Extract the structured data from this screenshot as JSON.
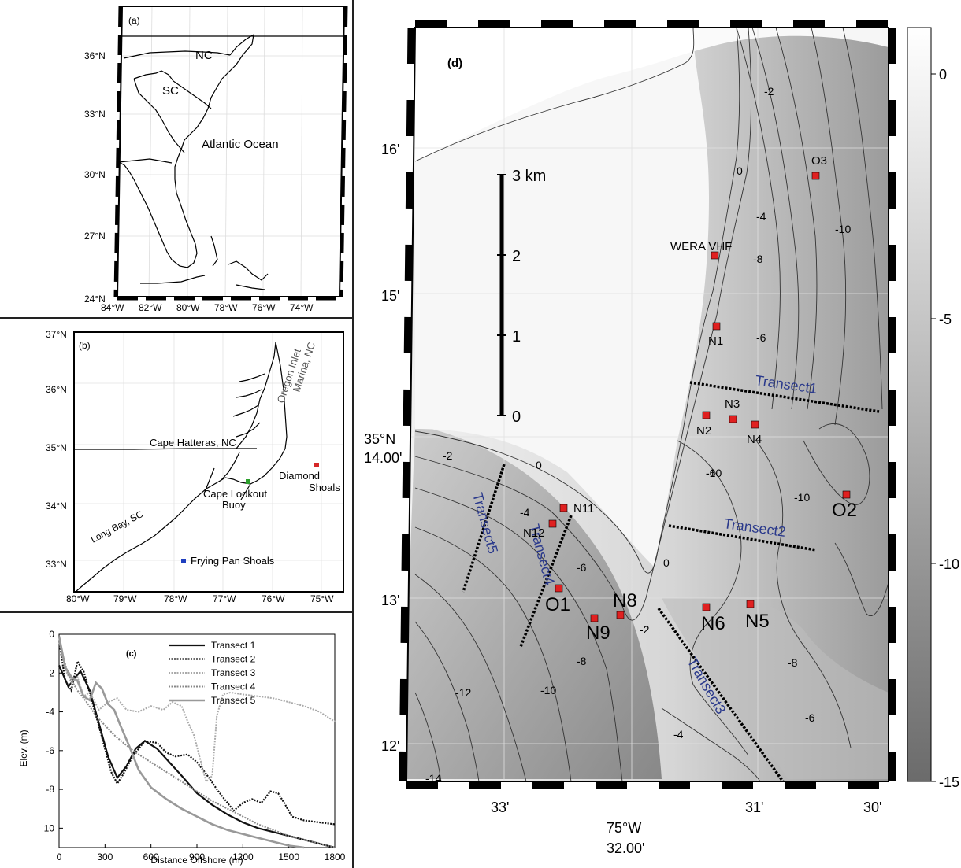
{
  "panel_a": {
    "label": "(a)",
    "lat_labels": [
      "36°N",
      "33°N",
      "30°N",
      "27°N",
      "24°N"
    ],
    "lon_labels": [
      "84°W",
      "82°W",
      "80°W",
      "78°W",
      "76°W",
      "74°W"
    ],
    "place_labels": [
      "NC",
      "SC",
      "Atlantic Ocean"
    ]
  },
  "panel_b": {
    "label": "(b)",
    "lat_labels": [
      "37°N",
      "36°N",
      "35°N",
      "34°N",
      "33°N"
    ],
    "lon_labels": [
      "80°W",
      "79°W",
      "78°W",
      "77°W",
      "76°W",
      "75°W"
    ],
    "place_labels": [
      "Oregon Inlet",
      "Marina, NC",
      "Cape Hatteras, NC",
      "Diamond",
      "Shoals",
      "Cape Lookout",
      "Buoy",
      "Long Bay, SC",
      "Frying Pan Shoals"
    ],
    "marker_colors": {
      "diamond_shoals": "#d62728",
      "cape_lookout": "#2ca02c",
      "frying_pan": "#1f3fbf"
    }
  },
  "panel_c": {
    "label": "(c)",
    "xlabel": "Distance Offshore (m)",
    "ylabel": "Elev. (m)",
    "xticks": [
      "0",
      "300",
      "600",
      "900",
      "1200",
      "1500",
      "1800"
    ],
    "yticks": [
      "0",
      "-2",
      "-4",
      "-6",
      "-8",
      "-10"
    ]
  },
  "panel_d": {
    "label": "(d)",
    "lat_labels": [
      "16'",
      "15'",
      "35°N",
      "14.00'",
      "13'",
      "12'"
    ],
    "lon_labels": [
      "33'",
      "75°W",
      "32.00'",
      "31'",
      "30'"
    ],
    "scale_labels": [
      "3 km",
      "2",
      "1",
      "0"
    ],
    "colorbar_labels": [
      "0",
      "-5",
      "-10",
      "-15"
    ],
    "contour_labels": [
      "-2",
      "0",
      "-4",
      "-8",
      "-10",
      "-6",
      "-10",
      "-2",
      "0",
      "-4",
      "-6",
      "-10",
      "-6",
      "-2",
      "0",
      "-8",
      "-10",
      "-12",
      "-8",
      "-6",
      "-4",
      "-14"
    ],
    "transect_labels": [
      "Transect1",
      "Transect2",
      "Transect3",
      "Transect4",
      "Transect5"
    ],
    "stations": [
      "O3",
      "WERA VHF",
      "N1",
      "N3",
      "N2",
      "N4",
      "O2",
      "N11",
      "N12",
      "O1",
      "N8",
      "N9",
      "N6",
      "N5"
    ],
    "station_color": "#e02020",
    "transect_color": "#2b3a8c"
  },
  "chart_data": {
    "type": "line",
    "title": "",
    "xlabel": "Distance Offshore (m)",
    "ylabel": "Elev. (m)",
    "xlim": [
      0,
      1800
    ],
    "ylim": [
      -11,
      0
    ],
    "legend_position": "top-right",
    "grid": false,
    "series": [
      {
        "name": "Transect 1",
        "style": "solid-black",
        "x": [
          0,
          60,
          100,
          140,
          200,
          260,
          320,
          380,
          440,
          500,
          560,
          640,
          720,
          800,
          900,
          1000,
          1100,
          1200,
          1300,
          1400,
          1500,
          1600,
          1700,
          1800
        ],
        "y": [
          -1.6,
          -2.7,
          -2.3,
          -1.9,
          -2.9,
          -4.6,
          -6.3,
          -7.4,
          -6.8,
          -5.9,
          -5.5,
          -5.9,
          -6.6,
          -7.3,
          -8.2,
          -8.8,
          -9.3,
          -9.7,
          -10.0,
          -10.2,
          -10.4,
          -10.6,
          -10.8,
          -11.0
        ]
      },
      {
        "name": "Transect 2",
        "style": "dotted-black",
        "x": [
          0,
          40,
          80,
          120,
          160,
          220,
          280,
          340,
          380,
          420,
          480,
          560,
          640,
          700,
          760,
          840,
          900,
          960,
          1040,
          1100,
          1140,
          1200,
          1260,
          1320,
          1380,
          1430,
          1470,
          1520,
          1600,
          1700,
          1800
        ],
        "y": [
          -0.3,
          -2.4,
          -2.9,
          -1.4,
          -1.9,
          -3.6,
          -5.3,
          -7.1,
          -7.7,
          -7.2,
          -6.3,
          -5.5,
          -5.6,
          -6.1,
          -6.3,
          -6.2,
          -6.6,
          -7.2,
          -8.1,
          -8.7,
          -9.1,
          -8.7,
          -8.5,
          -8.7,
          -8.1,
          -8.2,
          -8.7,
          -9.4,
          -9.6,
          -9.7,
          -9.8
        ]
      },
      {
        "name": "Transect 3",
        "style": "dotted-lightgray",
        "x": [
          0,
          40,
          80,
          120,
          160,
          200,
          260,
          320,
          380,
          440,
          520,
          600,
          680,
          740,
          800,
          840,
          880,
          920,
          960,
          1000,
          1030,
          1070,
          1120,
          1200,
          1300,
          1400,
          1500,
          1600,
          1700,
          1800
        ],
        "y": [
          -0.3,
          -1.8,
          -2.5,
          -2.2,
          -3.2,
          -3.0,
          -3.9,
          -3.5,
          -3.3,
          -3.9,
          -4.0,
          -3.7,
          -3.9,
          -3.5,
          -3.7,
          -4.5,
          -5.2,
          -6.4,
          -7.6,
          -7.3,
          -4.2,
          -3.1,
          -3.0,
          -3.1,
          -3.2,
          -3.3,
          -3.5,
          -3.7,
          -4.0,
          -4.5
        ]
      },
      {
        "name": "Transect 4",
        "style": "dotted-gray",
        "x": [
          0,
          60,
          120,
          180,
          240,
          300,
          360,
          420,
          500,
          600,
          700,
          800,
          900,
          1000,
          1100,
          1200,
          1300,
          1400,
          1500,
          1600,
          1700,
          1800
        ],
        "y": [
          -0.4,
          -2.1,
          -2.9,
          -3.5,
          -4.2,
          -4.7,
          -5.2,
          -5.6,
          -6.1,
          -6.6,
          -7.1,
          -7.6,
          -8.1,
          -8.6,
          -9.0,
          -9.4,
          -9.8,
          -10.1,
          -10.4,
          -10.6,
          -10.8,
          -11.0
        ]
      },
      {
        "name": "Transect 5",
        "style": "solid-gray",
        "x": [
          0,
          40,
          80,
          120,
          160,
          200,
          240,
          280,
          320,
          360,
          400,
          460,
          520,
          600,
          700,
          800,
          900,
          1000,
          1100,
          1200,
          1300,
          1400,
          1500,
          1600
        ],
        "y": [
          -0.1,
          -1.7,
          -2.2,
          -2.4,
          -3.2,
          -3.4,
          -2.5,
          -2.8,
          -3.6,
          -3.9,
          -4.7,
          -5.8,
          -7.0,
          -7.9,
          -8.5,
          -9.0,
          -9.4,
          -9.8,
          -10.1,
          -10.3,
          -10.5,
          -10.7,
          -10.9,
          -11.0
        ]
      }
    ]
  }
}
